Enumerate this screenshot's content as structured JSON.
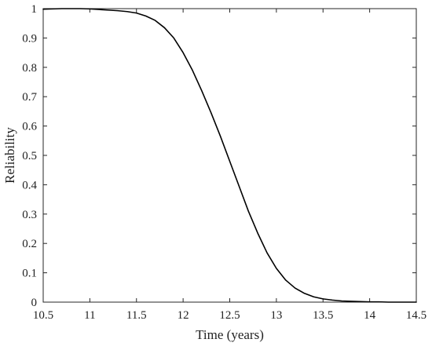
{
  "chart_data": {
    "type": "line",
    "title": "",
    "xlabel": "Time (years)",
    "ylabel": "Reliability",
    "xlim": [
      10.5,
      14.5
    ],
    "ylim": [
      0,
      1
    ],
    "xticks": [
      10.5,
      11,
      11.5,
      12,
      12.5,
      13,
      13.5,
      14,
      14.5
    ],
    "xtick_labels": [
      "10.5",
      "11",
      "11.5",
      "12",
      "12.5",
      "13",
      "13.5",
      "14",
      "14.5"
    ],
    "yticks": [
      0,
      0.1,
      0.2,
      0.3,
      0.4,
      0.5,
      0.6,
      0.7,
      0.8,
      0.9,
      1
    ],
    "ytick_labels": [
      "0",
      "0.1",
      "0.2",
      "0.3",
      "0.4",
      "0.5",
      "0.6",
      "0.7",
      "0.8",
      "0.9",
      "1"
    ],
    "grid": false,
    "series": [
      {
        "color": "#000000",
        "x": [
          10.5,
          10.6,
          10.7,
          10.8,
          10.9,
          11.0,
          11.1,
          11.2,
          11.3,
          11.4,
          11.5,
          11.6,
          11.7,
          11.8,
          11.9,
          12.0,
          12.1,
          12.2,
          12.3,
          12.4,
          12.5,
          12.6,
          12.7,
          12.8,
          12.9,
          13.0,
          13.1,
          13.2,
          13.3,
          13.4,
          13.5,
          13.6,
          13.7,
          13.8,
          13.9,
          14.0,
          14.1,
          14.2,
          14.3,
          14.4,
          14.5
        ],
        "y": [
          0.998,
          0.999,
          1.0,
          1.0,
          1.0,
          0.999,
          0.997,
          0.995,
          0.993,
          0.99,
          0.985,
          0.975,
          0.96,
          0.935,
          0.9,
          0.85,
          0.79,
          0.72,
          0.645,
          0.565,
          0.48,
          0.395,
          0.31,
          0.235,
          0.168,
          0.115,
          0.075,
          0.048,
          0.03,
          0.018,
          0.011,
          0.007,
          0.004,
          0.003,
          0.002,
          0.001,
          0.001,
          0.0,
          0.0,
          0.0,
          0.0
        ]
      }
    ]
  }
}
